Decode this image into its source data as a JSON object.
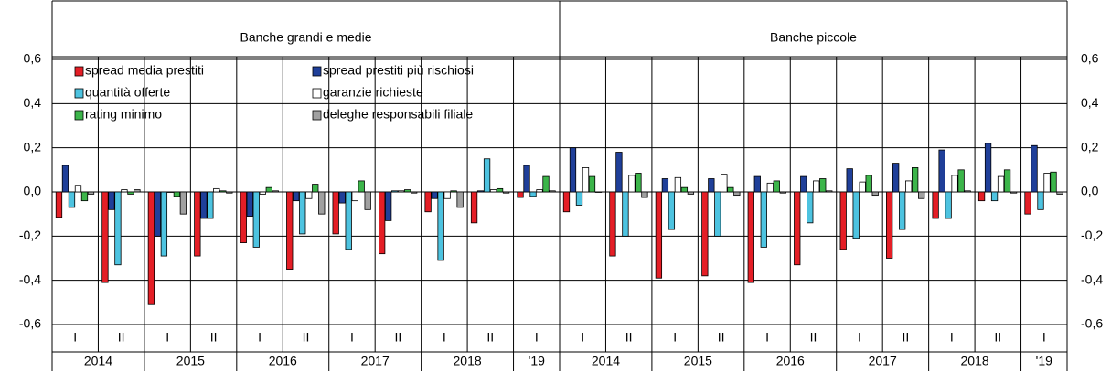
{
  "chart_data": {
    "type": "bar",
    "ylim": [
      -0.6,
      0.6
    ],
    "yticks": [
      {
        "value": -0.6,
        "label": "-0,6"
      },
      {
        "value": -0.4,
        "label": "-0,4"
      },
      {
        "value": -0.2,
        "label": "-0,2"
      },
      {
        "value": 0,
        "label": "0,0"
      },
      {
        "value": 0.2,
        "label": "0,2"
      },
      {
        "value": 0.4,
        "label": "0,4"
      },
      {
        "value": 0.6,
        "label": "0,6"
      }
    ],
    "grid": true,
    "legend": "top-left",
    "panels": [
      {
        "title": "Banche grandi e medie",
        "groups": [
          {
            "label": "2014",
            "categories": [
              "I",
              "II"
            ]
          },
          {
            "label": "2015",
            "categories": [
              "I",
              "II"
            ]
          },
          {
            "label": "2016",
            "categories": [
              "I",
              "II"
            ]
          },
          {
            "label": "2017",
            "categories": [
              "I",
              "II"
            ]
          },
          {
            "label": "2018",
            "categories": [
              "I",
              "II"
            ]
          },
          {
            "label": "'19",
            "categories": [
              "I"
            ]
          }
        ]
      },
      {
        "title": "Banche piccole",
        "groups": [
          {
            "label": "2014",
            "categories": [
              "I",
              "II"
            ]
          },
          {
            "label": "2015",
            "categories": [
              "I",
              "II"
            ]
          },
          {
            "label": "2016",
            "categories": [
              "I",
              "II"
            ]
          },
          {
            "label": "2017",
            "categories": [
              "I",
              "II"
            ]
          },
          {
            "label": "2018",
            "categories": [
              "I",
              "II"
            ]
          },
          {
            "label": "'19",
            "categories": [
              "I"
            ]
          }
        ]
      }
    ],
    "series": [
      {
        "name": "spread media prestiti",
        "color": "#e41e26",
        "values": [
          [
            -0.115,
            -0.41,
            -0.51,
            -0.29,
            -0.23,
            -0.35,
            -0.19,
            -0.28,
            -0.09,
            -0.14,
            -0.025
          ],
          [
            -0.09,
            -0.29,
            -0.39,
            -0.38,
            -0.41,
            -0.33,
            -0.26,
            -0.3,
            -0.12,
            -0.04,
            -0.1
          ]
        ]
      },
      {
        "name": "spread prestiti più rischiosi",
        "color": "#1f3f99",
        "values": [
          [
            0.12,
            -0.08,
            -0.2,
            -0.12,
            -0.11,
            -0.04,
            -0.05,
            -0.13,
            -0.03,
            0.005,
            0.12
          ],
          [
            0.2,
            0.18,
            0.06,
            0.06,
            0.07,
            0.07,
            0.105,
            0.13,
            0.19,
            0.22,
            0.21
          ]
        ]
      },
      {
        "name": "quantità offerte",
        "color": "#4dc3e0",
        "values": [
          [
            -0.07,
            -0.33,
            -0.29,
            -0.12,
            -0.25,
            -0.19,
            -0.26,
            0.005,
            -0.31,
            0.15,
            -0.02
          ],
          [
            -0.06,
            -0.2,
            -0.17,
            -0.2,
            -0.25,
            -0.14,
            -0.21,
            -0.17,
            -0.12,
            -0.04,
            -0.08
          ]
        ]
      },
      {
        "name": "garanzie richieste",
        "color": "#ffffff",
        "values": [
          [
            0.03,
            0.01,
            0,
            0.015,
            -0.01,
            -0.03,
            -0.04,
            0.005,
            -0.03,
            0.01,
            0.01
          ],
          [
            0.11,
            0.075,
            0.065,
            0.08,
            0.04,
            0.05,
            0.045,
            0.05,
            0.075,
            0.07,
            0.085
          ]
        ]
      },
      {
        "name": "rating minimo",
        "color": "#3cb54a",
        "values": [
          [
            -0.04,
            -0.01,
            -0.02,
            0.005,
            0.02,
            0.035,
            0.05,
            0.01,
            0.005,
            0.015,
            0.07
          ],
          [
            0.07,
            0.085,
            0.02,
            0.02,
            0.05,
            0.06,
            0.075,
            0.11,
            0.1,
            0.1,
            0.09
          ]
        ]
      },
      {
        "name": "deleghe responsabili filiale",
        "color": "#a0a0a0",
        "values": [
          [
            -0.01,
            0.01,
            -0.1,
            -0.005,
            0.005,
            -0.1,
            -0.08,
            -0.005,
            -0.07,
            -0.005,
            0.005
          ],
          [
            0,
            -0.025,
            -0.01,
            -0.015,
            -0.005,
            0.005,
            -0.015,
            -0.03,
            0.005,
            -0.005,
            -0.01
          ]
        ]
      }
    ]
  }
}
